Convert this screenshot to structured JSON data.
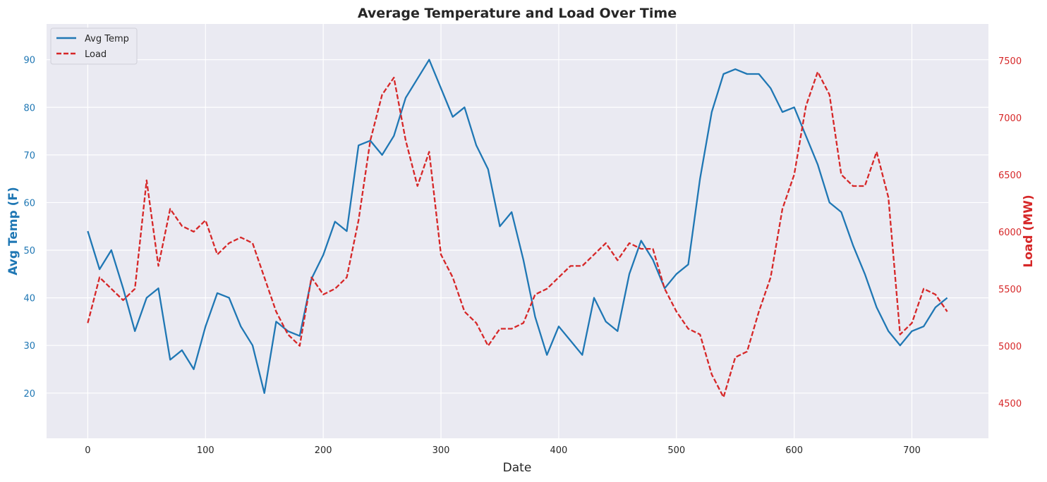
{
  "chart_data": {
    "type": "line",
    "title": "Average Temperature and Load Over Time",
    "xlabel": "Date",
    "ylabel_left": "Avg Temp (F)",
    "ylabel_right": "Load (MW)",
    "xlim": [
      -35,
      765
    ],
    "ylim_left": [
      10.5,
      97.5
    ],
    "ylim_right": [
      4190,
      7820
    ],
    "x_ticks": [
      0,
      100,
      200,
      300,
      400,
      500,
      600,
      700
    ],
    "y_ticks_left": [
      20,
      30,
      40,
      50,
      60,
      70,
      80,
      90
    ],
    "y_ticks_right": [
      4500,
      5000,
      5500,
      6000,
      6500,
      7000,
      7500
    ],
    "grid": true,
    "legend": "top-left",
    "colors": {
      "avg_temp": "#1f77b4",
      "load": "#d62728",
      "left_axis": "#1f77b4",
      "right_axis": "#d62728",
      "background": "#eaeaf2"
    },
    "x_series": {
      "start": 0,
      "step": 10,
      "end": 730
    },
    "series": [
      {
        "name": "Avg Temp",
        "axis": "left",
        "style": "solid",
        "values": [
          54,
          46,
          50,
          42,
          33,
          40,
          42,
          27,
          29,
          25,
          34,
          41,
          40,
          34,
          30,
          20,
          35,
          33,
          32,
          44,
          49,
          56,
          54,
          72,
          73,
          70,
          74,
          82,
          86,
          90,
          84,
          78,
          80,
          72,
          67,
          55,
          58,
          48,
          36,
          28,
          34,
          31,
          28,
          40,
          35,
          33,
          45,
          52,
          48,
          42,
          45,
          47,
          65,
          79,
          87,
          88,
          87,
          87,
          84,
          79,
          80,
          74,
          68,
          60,
          58,
          51,
          45,
          38,
          33,
          30,
          33,
          34,
          38,
          40
        ]
      },
      {
        "name": "Load",
        "axis": "right",
        "style": "dashed",
        "values": [
          5200,
          5600,
          5500,
          5400,
          5500,
          6450,
          5700,
          6200,
          6050,
          6000,
          6100,
          5800,
          5900,
          5950,
          5900,
          5600,
          5300,
          5100,
          5000,
          5600,
          5450,
          5500,
          5600,
          6100,
          6800,
          7200,
          7350,
          6800,
          6400,
          6700,
          5800,
          5600,
          5300,
          5200,
          5000,
          5150,
          5150,
          5200,
          5450,
          5500,
          5600,
          5700,
          5700,
          5800,
          5900,
          5750,
          5900,
          5850,
          5850,
          5500,
          5300,
          5150,
          5100,
          4750,
          4550,
          4900,
          4950,
          5300,
          5600,
          6200,
          6500,
          7100,
          7400,
          7200,
          6500,
          6400,
          6400,
          6700,
          6300,
          5100,
          5200,
          5500,
          5450,
          5300
        ]
      }
    ]
  }
}
